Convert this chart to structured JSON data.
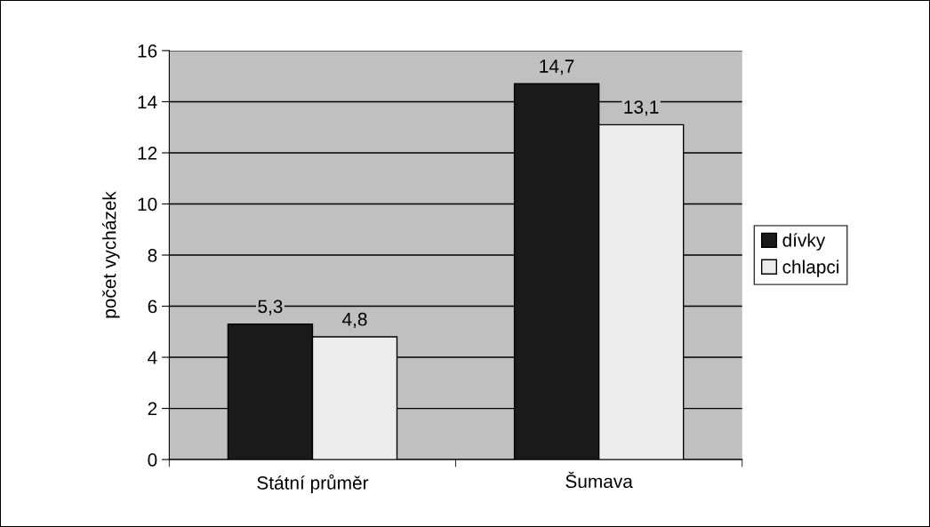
{
  "chart_data": {
    "type": "bar",
    "ylabel": "počet vycházek",
    "categories": [
      "Státní průměr",
      "Šumava"
    ],
    "series": [
      {
        "name": "dívky",
        "color": "#1a1a1a",
        "values": [
          5.3,
          14.7
        ],
        "value_labels": [
          "5,3",
          "14,7"
        ]
      },
      {
        "name": "chlapci",
        "color": "#ececec",
        "values": [
          4.8,
          13.1
        ],
        "value_labels": [
          "4,8",
          "13,1"
        ]
      }
    ],
    "ylim": [
      0,
      16
    ],
    "yticks": [
      0,
      2,
      4,
      6,
      8,
      10,
      12,
      14,
      16
    ],
    "grid": "y",
    "legend": "right"
  }
}
